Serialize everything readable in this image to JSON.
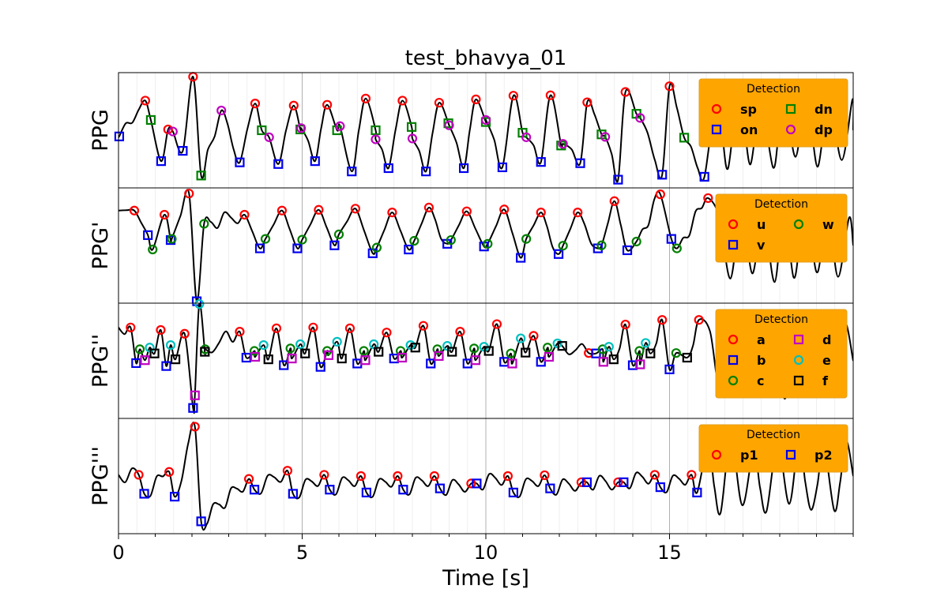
{
  "chart_data": {
    "type": "line",
    "title": "test_bhavya_01",
    "xlabel": "Time [s]",
    "xlim": [
      0,
      20
    ],
    "xticks": [
      0,
      5,
      10,
      15
    ],
    "xtick_labels": [
      "0",
      "5",
      "10",
      "15"
    ],
    "grid": true,
    "legend_title": "Detection",
    "legend_placement": "top-right",
    "colors": {
      "red": "#ff0000",
      "blue": "#0000ee",
      "green": "#008000",
      "magenta": "#c000c0",
      "cyan": "#00bfbf",
      "black": "#000000",
      "legend_bg": "#ffa500",
      "signal": "#000000"
    },
    "panels": [
      {
        "ylabel": "PPG",
        "ylim": [
          -1.2,
          1.6
        ],
        "legend_columns": [
          [
            "sp",
            "on"
          ],
          [
            "dn",
            "dp"
          ]
        ],
        "markers": [
          {
            "name": "sp",
            "shape": "circle",
            "color": "#ff0000",
            "x": [
              0.73,
              1.35,
              2.03,
              3.72,
              4.77,
              5.68,
              6.73,
              7.73,
              8.73,
              9.73,
              10.75,
              11.76,
              12.76,
              13.8,
              15.0
            ],
            "y": [
              0.92,
              0.22,
              1.5,
              0.85,
              0.8,
              0.82,
              0.97,
              0.92,
              0.87,
              0.95,
              1.04,
              1.05,
              0.88,
              1.13,
              1.27
            ]
          },
          {
            "name": "on",
            "shape": "square",
            "color": "#0000ee",
            "x": [
              0.02,
              1.16,
              1.75,
              3.3,
              4.35,
              5.35,
              6.35,
              7.35,
              8.37,
              9.4,
              10.45,
              11.5,
              12.57,
              13.6,
              14.8,
              15.95
            ],
            "y": [
              0.05,
              -0.55,
              -0.3,
              -0.58,
              -0.62,
              -0.55,
              -0.8,
              -0.72,
              -0.8,
              -0.72,
              -0.7,
              -0.57,
              -0.6,
              -1.0,
              -0.88,
              -0.93
            ]
          },
          {
            "name": "dn",
            "shape": "square",
            "color": "#008000",
            "x": [
              0.88,
              2.25,
              3.9,
              4.95,
              5.95,
              7.0,
              7.98,
              8.98,
              10.0,
              11.0,
              12.05,
              13.15,
              14.1,
              15.4
            ],
            "y": [
              0.45,
              -0.9,
              0.2,
              0.22,
              0.2,
              0.2,
              0.28,
              0.37,
              0.4,
              0.14,
              -0.17,
              0.1,
              0.6,
              0.02
            ]
          },
          {
            "name": "dp",
            "shape": "circle",
            "color": "#c000c0",
            "x": [
              1.48,
              2.8,
              4.1,
              4.97,
              6.03,
              7.0,
              8.0,
              9.0,
              10.0,
              11.1,
              12.1,
              13.25,
              14.2
            ],
            "y": [
              0.17,
              0.68,
              0.03,
              0.25,
              0.3,
              -0.02,
              0.0,
              0.32,
              0.45,
              0.03,
              -0.13,
              0.04,
              0.5
            ]
          }
        ]
      },
      {
        "ylabel": "PPG'",
        "ylim": [
          -1.9,
          1.15
        ],
        "legend_columns": [
          [
            "u",
            "v"
          ],
          [
            "w"
          ]
        ],
        "markers": [
          {
            "name": "u",
            "shape": "circle",
            "color": "#ff0000",
            "x": [
              0.43,
              1.25,
              1.92,
              3.43,
              4.45,
              5.45,
              6.45,
              7.45,
              8.45,
              9.48,
              10.5,
              11.5,
              12.5,
              13.5,
              14.75,
              16.05
            ],
            "y": [
              0.55,
              0.44,
              1.0,
              0.44,
              0.55,
              0.57,
              0.6,
              0.5,
              0.63,
              0.53,
              0.58,
              0.5,
              0.5,
              0.8,
              0.98,
              0.88
            ]
          },
          {
            "name": "v",
            "shape": "square",
            "color": "#0000ee",
            "x": [
              0.8,
              1.42,
              2.13,
              3.85,
              4.87,
              5.88,
              6.92,
              7.9,
              8.95,
              9.95,
              10.95,
              11.98,
              13.05,
              13.85,
              15.05
            ],
            "y": [
              -0.1,
              -0.23,
              -1.85,
              -0.45,
              -0.45,
              -0.37,
              -0.58,
              -0.48,
              -0.33,
              -0.4,
              -0.7,
              -0.6,
              -0.45,
              -0.5,
              -0.2
            ]
          },
          {
            "name": "w",
            "shape": "circle",
            "color": "#008000",
            "x": [
              0.93,
              1.45,
              2.33,
              4.0,
              5.0,
              6.0,
              7.03,
              8.05,
              9.05,
              10.05,
              11.1,
              12.1,
              13.15,
              14.1,
              15.2
            ],
            "y": [
              -0.48,
              -0.2,
              0.2,
              -0.2,
              -0.22,
              -0.08,
              -0.43,
              -0.25,
              -0.23,
              -0.33,
              -0.2,
              -0.38,
              -0.37,
              -0.27,
              -0.45
            ]
          }
        ]
      },
      {
        "ylabel": "PPG''",
        "ylim": [
          -1.55,
          1.2
        ],
        "legend_columns": [
          [
            "a",
            "b",
            "c"
          ],
          [
            "d",
            "e",
            "f"
          ]
        ],
        "markers": [
          {
            "name": "a",
            "shape": "circle",
            "color": "#ff0000",
            "x": [
              0.33,
              1.15,
              1.8,
              3.3,
              4.3,
              5.3,
              6.3,
              7.3,
              8.3,
              9.3,
              10.3,
              11.3,
              12.8,
              13.8,
              14.8,
              15.8
            ],
            "y": [
              0.62,
              0.56,
              0.47,
              0.52,
              0.6,
              0.62,
              0.6,
              0.5,
              0.66,
              0.52,
              0.7,
              0.42,
              0.01,
              0.69,
              0.8,
              0.8
            ]
          },
          {
            "name": "b",
            "shape": "square",
            "color": "#0000ee",
            "x": [
              0.48,
              1.3,
              2.03,
              3.48,
              4.5,
              5.5,
              6.5,
              7.5,
              8.5,
              9.5,
              10.5,
              11.5,
              13.0,
              14.0,
              15.0
            ],
            "y": [
              -0.23,
              -0.3,
              -1.3,
              -0.1,
              -0.28,
              -0.32,
              -0.24,
              -0.12,
              -0.24,
              -0.24,
              -0.2,
              -0.2,
              0.0,
              -0.28,
              -0.38
            ]
          },
          {
            "name": "c",
            "shape": "circle",
            "color": "#008000",
            "x": [
              0.58,
              2.36,
              3.7,
              4.68,
              5.68,
              6.68,
              7.68,
              8.68,
              9.68,
              10.68,
              11.68,
              13.18,
              14.18,
              15.18
            ],
            "y": [
              0.1,
              0.1,
              0.06,
              0.12,
              0.06,
              0.06,
              0.06,
              0.1,
              0.12,
              0.0,
              0.14,
              0.1,
              0.06,
              0.01
            ]
          },
          {
            "name": "d",
            "shape": "square",
            "color": "#c000c0",
            "x": [
              0.72,
              2.08,
              3.72,
              4.72,
              5.72,
              6.72,
              7.72,
              8.72,
              9.72,
              10.72,
              11.72,
              13.2,
              14.2
            ],
            "y": [
              -0.16,
              -1.0,
              -0.08,
              -0.12,
              -0.04,
              -0.16,
              -0.1,
              -0.06,
              -0.16,
              -0.24,
              -0.08,
              -0.2,
              -0.26
            ]
          },
          {
            "name": "e",
            "shape": "circle",
            "color": "#00bfbf",
            "x": [
              0.85,
              1.42,
              2.2,
              3.95,
              4.95,
              5.95,
              6.95,
              7.95,
              8.95,
              9.95,
              10.95,
              11.95,
              13.35,
              14.35
            ],
            "y": [
              0.14,
              0.2,
              1.18,
              0.2,
              0.22,
              0.28,
              0.22,
              0.2,
              0.18,
              0.16,
              0.36,
              0.24,
              0.16,
              0.25
            ]
          },
          {
            "name": "f",
            "shape": "square",
            "color": "#000000",
            "x": [
              0.98,
              1.55,
              2.35,
              4.08,
              5.08,
              6.08,
              7.08,
              8.08,
              9.08,
              10.08,
              11.08,
              12.08,
              13.48,
              14.48,
              15.48
            ],
            "y": [
              0.0,
              -0.14,
              0.04,
              -0.14,
              0.0,
              -0.12,
              0.04,
              0.14,
              0.04,
              0.06,
              0.02,
              0.18,
              -0.14,
              0.0,
              -0.1
            ]
          }
        ]
      },
      {
        "ylabel": "PPG'''",
        "ylim": [
          -1.2,
          1.6
        ],
        "legend_columns": [
          [
            "p1"
          ],
          [
            "p2"
          ]
        ],
        "markers": [
          {
            "name": "p1",
            "shape": "circle",
            "color": "#ff0000",
            "x": [
              0.55,
              1.38,
              2.08,
              3.55,
              4.6,
              5.6,
              6.6,
              7.6,
              8.6,
              9.6,
              10.6,
              11.6,
              12.6,
              13.6,
              14.6,
              15.6
            ],
            "y": [
              0.23,
              0.3,
              1.4,
              0.13,
              0.33,
              0.23,
              0.2,
              0.2,
              0.2,
              0.02,
              0.2,
              0.22,
              0.05,
              0.05,
              0.23,
              0.23
            ]
          },
          {
            "name": "p2",
            "shape": "square",
            "color": "#0000ee",
            "x": [
              0.7,
              1.53,
              2.25,
              3.7,
              4.75,
              5.75,
              6.75,
              7.75,
              8.75,
              9.75,
              10.75,
              11.75,
              12.75,
              13.75,
              14.75,
              15.75
            ],
            "y": [
              -0.23,
              -0.3,
              -0.9,
              -0.13,
              -0.23,
              -0.13,
              -0.2,
              -0.13,
              -0.1,
              0.02,
              -0.2,
              -0.1,
              0.05,
              0.05,
              -0.07,
              -0.2
            ]
          }
        ]
      }
    ]
  }
}
